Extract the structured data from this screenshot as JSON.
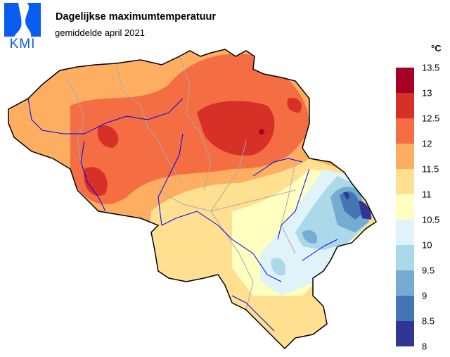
{
  "header": {
    "logo_text": "KMI",
    "title": "Dagelijkse maximumtemperatuur",
    "subtitle": "gemiddelde april 2021"
  },
  "legend": {
    "unit": "°C",
    "ticks": [
      "13.5",
      "13",
      "12.5",
      "12",
      "11.5",
      "11",
      "10.5",
      "10",
      "9.5",
      "9",
      "8.5",
      "8"
    ],
    "bands": [
      {
        "range": "13–13.5",
        "color": "#a50026"
      },
      {
        "range": "12.5–13",
        "color": "#d73027"
      },
      {
        "range": "12–12.5",
        "color": "#f46d43"
      },
      {
        "range": "11.5–12",
        "color": "#fdae61"
      },
      {
        "range": "11–11.5",
        "color": "#fee090"
      },
      {
        "range": "10.5–11",
        "color": "#ffffbf"
      },
      {
        "range": "10–10.5",
        "color": "#e0f3f8"
      },
      {
        "range": "9.5–10",
        "color": "#abd9e9"
      },
      {
        "range": "9–9.5",
        "color": "#74add1"
      },
      {
        "range": "8.5–9",
        "color": "#4575b4"
      },
      {
        "range": "8–8.5",
        "color": "#313695"
      }
    ]
  },
  "map": {
    "region": "Belgium",
    "river_color": "#0000ff",
    "border_color": "#aaaaaa"
  }
}
